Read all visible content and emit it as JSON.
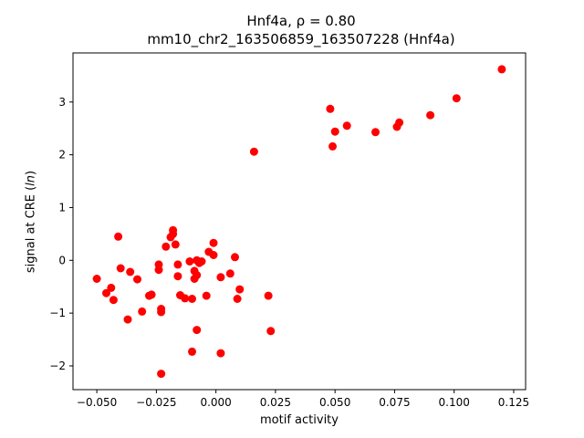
{
  "chart_data": {
    "type": "scatter",
    "title_line1": "Hnf4a, ρ = 0.80",
    "title_line2": "mm10_chr2_163506859_163507228 (Hnf4a)",
    "xlabel": "motif activity",
    "ylabel": "signal at CRE (ln)",
    "xlim": [
      -0.06,
      0.13
    ],
    "ylim": [
      -2.45,
      3.93
    ],
    "xticks": [
      -0.05,
      -0.025,
      0.0,
      0.025,
      0.05,
      0.075,
      0.1,
      0.125
    ],
    "xtick_labels": [
      "−0.050",
      "−0.025",
      "0.000",
      "0.025",
      "0.050",
      "0.075",
      "0.100",
      "0.125"
    ],
    "yticks": [
      -2,
      -1,
      0,
      1,
      2,
      3
    ],
    "ytick_labels": [
      "−2",
      "−1",
      "0",
      "1",
      "2",
      "3"
    ],
    "grid": false,
    "marker_color": "#ff0000",
    "points": [
      [
        -0.05,
        -0.35
      ],
      [
        -0.046,
        -0.62
      ],
      [
        -0.044,
        -0.52
      ],
      [
        -0.043,
        -0.75
      ],
      [
        -0.041,
        0.45
      ],
      [
        -0.04,
        -0.15
      ],
      [
        -0.037,
        -1.12
      ],
      [
        -0.036,
        -0.22
      ],
      [
        -0.033,
        -0.36
      ],
      [
        -0.031,
        -0.97
      ],
      [
        -0.028,
        -0.67
      ],
      [
        -0.027,
        -0.65
      ],
      [
        -0.024,
        -0.08
      ],
      [
        -0.024,
        -0.18
      ],
      [
        -0.023,
        -0.92
      ],
      [
        -0.023,
        -0.98
      ],
      [
        -0.023,
        -2.15
      ],
      [
        -0.021,
        0.26
      ],
      [
        -0.019,
        0.44
      ],
      [
        -0.018,
        0.57
      ],
      [
        -0.018,
        0.5
      ],
      [
        -0.017,
        0.3
      ],
      [
        -0.016,
        -0.08
      ],
      [
        -0.016,
        -0.3
      ],
      [
        -0.015,
        -0.66
      ],
      [
        -0.013,
        -0.72
      ],
      [
        -0.011,
        -0.02
      ],
      [
        -0.01,
        -1.73
      ],
      [
        -0.01,
        -0.73
      ],
      [
        -0.009,
        -0.35
      ],
      [
        -0.009,
        -0.2
      ],
      [
        -0.008,
        -1.32
      ],
      [
        -0.008,
        -0.28
      ],
      [
        -0.008,
        0.0
      ],
      [
        -0.007,
        -0.05
      ],
      [
        -0.006,
        -0.02
      ],
      [
        -0.004,
        -0.67
      ],
      [
        -0.003,
        0.16
      ],
      [
        -0.001,
        0.1
      ],
      [
        -0.001,
        0.33
      ],
      [
        0.002,
        -0.32
      ],
      [
        0.002,
        -1.76
      ],
      [
        0.006,
        -0.25
      ],
      [
        0.008,
        0.06
      ],
      [
        0.009,
        -0.73
      ],
      [
        0.01,
        -0.55
      ],
      [
        0.016,
        2.06
      ],
      [
        0.022,
        -0.67
      ],
      [
        0.023,
        -1.34
      ],
      [
        0.048,
        2.87
      ],
      [
        0.049,
        2.16
      ],
      [
        0.05,
        2.44
      ],
      [
        0.055,
        2.55
      ],
      [
        0.067,
        2.43
      ],
      [
        0.076,
        2.53
      ],
      [
        0.077,
        2.61
      ],
      [
        0.09,
        2.75
      ],
      [
        0.101,
        3.07
      ],
      [
        0.12,
        3.62
      ]
    ]
  }
}
